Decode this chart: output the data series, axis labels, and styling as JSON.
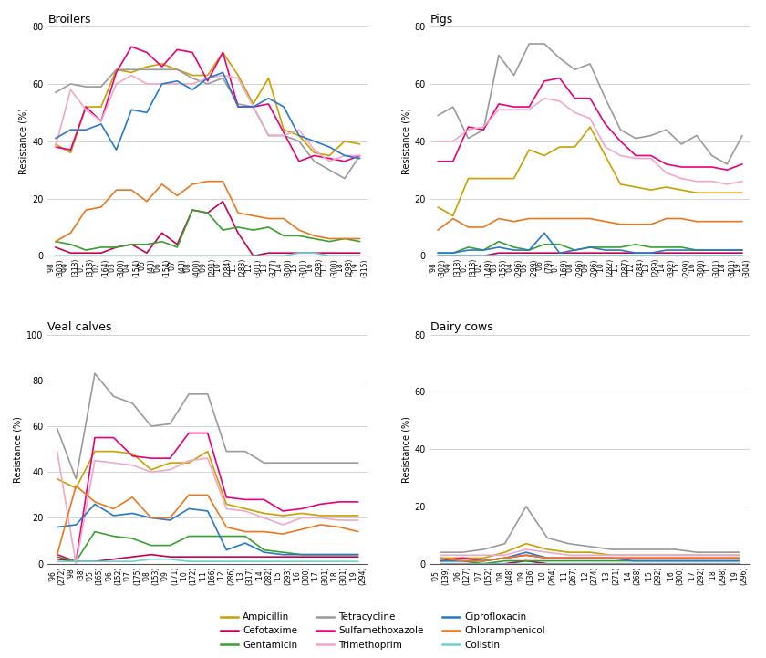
{
  "broilers": {
    "title": "Broilers",
    "years": [
      "'98\n(303)",
      "'99\n(318)",
      "'01\n(318)",
      "'02\n(164)",
      "'03\n(300)",
      "'04\n(154)",
      "'05\n(43)",
      "'06\n(154)",
      "'07\n(43)",
      "'08\n(400)",
      "'09\n(291)",
      "'10\n(284)",
      "'11\n(283)",
      "'12\n(301)",
      "'13\n(377)",
      "'14\n(300)",
      "'15\n(301)",
      "'16\n(298)",
      "'17\n(300)",
      "'18\n(298)",
      "'19\n(315)"
    ],
    "ylim": [
      0,
      80
    ],
    "yticks": [
      0,
      20,
      40,
      60,
      80
    ],
    "Ampicillin": [
      39,
      36,
      52,
      52,
      65,
      64,
      66,
      67,
      65,
      63,
      63,
      71,
      63,
      53,
      62,
      44,
      42,
      36,
      35,
      40,
      39
    ],
    "Tetracycline": [
      57,
      60,
      59,
      59,
      65,
      65,
      65,
      65,
      65,
      62,
      60,
      62,
      53,
      52,
      42,
      42,
      40,
      33,
      30,
      27,
      35
    ],
    "Cefotaxime": [
      3,
      1,
      1,
      1,
      3,
      4,
      1,
      8,
      4,
      16,
      15,
      19,
      8,
      0,
      1,
      1,
      1,
      1,
      1,
      1,
      1
    ],
    "Sulfamethoxazole": [
      38,
      37,
      52,
      47,
      64,
      73,
      71,
      66,
      72,
      71,
      61,
      71,
      52,
      52,
      53,
      43,
      33,
      35,
      34,
      33,
      35
    ],
    "Gentamicin": [
      5,
      4,
      2,
      3,
      3,
      4,
      4,
      5,
      3,
      16,
      15,
      9,
      10,
      9,
      10,
      7,
      7,
      6,
      5,
      6,
      5
    ],
    "Trimethoprim": [
      38,
      58,
      51,
      47,
      60,
      63,
      60,
      60,
      60,
      60,
      62,
      63,
      62,
      52,
      42,
      42,
      44,
      37,
      33,
      35,
      35
    ],
    "Ciprofloxacin": [
      41,
      44,
      44,
      46,
      37,
      51,
      50,
      60,
      61,
      58,
      62,
      64,
      52,
      52,
      55,
      52,
      42,
      40,
      38,
      35,
      34
    ],
    "Chloramphenicol": [
      5,
      8,
      16,
      17,
      23,
      23,
      19,
      25,
      21,
      25,
      26,
      26,
      15,
      14,
      13,
      13,
      9,
      7,
      6,
      6,
      6
    ],
    "Colistin": [
      0,
      0,
      0,
      0,
      0,
      0,
      0,
      0,
      0,
      0,
      0,
      0,
      0,
      0,
      0,
      0,
      1,
      1,
      0,
      0,
      0
    ]
  },
  "pigs": {
    "title": "Pigs",
    "years": [
      "'98\n(302)",
      "'99\n(318)",
      "'01\n(318)",
      "'02\n(149)",
      "'03\n(155)",
      "'04\n(296)",
      "'05\n(299)",
      "'06\n(79)",
      "'07\n(169)",
      "'08\n(296)",
      "'09\n(296)",
      "'10\n(282)",
      "'11\n(287)",
      "'12\n(284)",
      "'13\n(289)",
      "'14\n(392)",
      "'15\n(299)",
      "'16\n(300)",
      "'17\n(301)",
      "'18\n(301)",
      "'19\n(304)"
    ],
    "ylim": [
      0,
      80
    ],
    "yticks": [
      0,
      20,
      40,
      60,
      80
    ],
    "Ampicillin": [
      17,
      14,
      27,
      27,
      27,
      27,
      37,
      35,
      38,
      38,
      45,
      35,
      25,
      24,
      23,
      24,
      23,
      22,
      22,
      22,
      22
    ],
    "Tetracycline": [
      49,
      52,
      41,
      44,
      70,
      63,
      74,
      74,
      69,
      65,
      67,
      55,
      44,
      41,
      42,
      44,
      39,
      42,
      35,
      32,
      42
    ],
    "Cefotaxime": [
      0,
      0,
      0,
      0,
      1,
      1,
      1,
      1,
      1,
      1,
      1,
      1,
      1,
      1,
      1,
      1,
      1,
      1,
      1,
      1,
      1
    ],
    "Sulfamethoxazole": [
      33,
      33,
      45,
      44,
      53,
      52,
      52,
      61,
      62,
      55,
      55,
      46,
      40,
      35,
      35,
      32,
      31,
      31,
      31,
      30,
      32
    ],
    "Gentamicin": [
      1,
      1,
      3,
      2,
      5,
      3,
      2,
      4,
      4,
      2,
      3,
      3,
      3,
      4,
      3,
      3,
      3,
      2,
      2,
      2,
      2
    ],
    "Trimethoprim": [
      40,
      40,
      44,
      45,
      51,
      51,
      51,
      55,
      54,
      50,
      48,
      38,
      35,
      34,
      34,
      29,
      27,
      26,
      26,
      25,
      26
    ],
    "Ciprofloxacin": [
      1,
      1,
      2,
      2,
      3,
      2,
      2,
      8,
      1,
      2,
      3,
      2,
      2,
      1,
      1,
      2,
      2,
      2,
      2,
      2,
      2
    ],
    "Chloramphenicol": [
      9,
      13,
      10,
      10,
      13,
      12,
      13,
      13,
      13,
      13,
      13,
      12,
      11,
      11,
      11,
      13,
      13,
      12,
      12,
      12,
      12
    ],
    "Colistin": [
      0,
      0,
      0,
      0,
      0,
      0,
      0,
      0,
      0,
      0,
      0,
      0,
      0,
      0,
      0,
      0,
      0,
      0,
      0,
      0,
      0
    ]
  },
  "veal": {
    "title": "Veal calves",
    "years": [
      "'96\n(272)",
      "'98\n(38)",
      "'05\n(165)",
      "'06\n(152)",
      "'07\n(175)",
      "'08\n(153)",
      "'09\n(171)",
      "'10\n(172)",
      "'11\n(166)",
      "'12\n(286)",
      "'13\n(317)",
      "'14\n(282)",
      "'15\n(293)",
      "'16\n(300)",
      "'17\n(301)",
      "'18\n(301)",
      "'19\n(294)"
    ],
    "ylim": [
      0,
      100
    ],
    "yticks": [
      0,
      20,
      40,
      60,
      80,
      100
    ],
    "Ampicillin": [
      37,
      33,
      49,
      49,
      48,
      41,
      44,
      44,
      49,
      26,
      24,
      22,
      21,
      22,
      21,
      21,
      21
    ],
    "Tetracycline": [
      59,
      37,
      83,
      73,
      70,
      60,
      61,
      74,
      74,
      49,
      49,
      44,
      44,
      44,
      44,
      44,
      44
    ],
    "Cefotaxime": [
      2,
      1,
      1,
      2,
      3,
      4,
      3,
      3,
      3,
      3,
      3,
      3,
      3,
      3,
      3,
      3,
      3
    ],
    "Sulfamethoxazole": [
      4,
      1,
      55,
      55,
      47,
      46,
      46,
      57,
      57,
      29,
      28,
      28,
      23,
      24,
      26,
      27,
      27
    ],
    "Gentamicin": [
      3,
      1,
      14,
      12,
      11,
      8,
      8,
      12,
      12,
      12,
      12,
      6,
      5,
      4,
      4,
      4,
      4
    ],
    "Trimethoprim": [
      49,
      0,
      45,
      44,
      43,
      40,
      41,
      45,
      46,
      24,
      23,
      20,
      17,
      20,
      20,
      19,
      19
    ],
    "Ciprofloxacin": [
      16,
      17,
      26,
      21,
      22,
      20,
      19,
      24,
      23,
      6,
      9,
      5,
      4,
      4,
      4,
      4,
      4
    ],
    "Chloramphenicol": [
      4,
      34,
      27,
      24,
      29,
      20,
      20,
      30,
      30,
      16,
      14,
      14,
      13,
      15,
      17,
      16,
      14
    ],
    "Colistin": [
      1,
      1,
      1,
      1,
      1,
      2,
      2,
      1,
      1,
      1,
      1,
      1,
      1,
      1,
      1,
      1,
      1
    ]
  },
  "dairy": {
    "title": "Dairy cows",
    "years": [
      "'05\n(139)",
      "'06\n(127)",
      "'07\n(152)",
      "'08\n(148)",
      "'09\n(136)",
      "'10\n(264)",
      "'11\n(267)",
      "'12\n(274)",
      "'13\n(271)",
      "'14\n(268)",
      "'15\n(292)",
      "'16\n(300)",
      "'17\n(292)",
      "'18\n(298)",
      "'19\n(296)"
    ],
    "ylim": [
      0,
      80
    ],
    "yticks": [
      0,
      20,
      40,
      60,
      80
    ],
    "Ampicillin": [
      2,
      2,
      2,
      4,
      7,
      5,
      4,
      4,
      3,
      3,
      3,
      3,
      3,
      3,
      3
    ],
    "Tetracycline": [
      4,
      4,
      5,
      7,
      20,
      9,
      7,
      6,
      5,
      5,
      5,
      5,
      4,
      4,
      4
    ],
    "Cefotaxime": [
      0,
      0,
      0,
      0,
      1,
      0,
      0,
      0,
      0,
      0,
      0,
      0,
      0,
      0,
      0
    ],
    "Sulfamethoxazole": [
      1,
      2,
      1,
      2,
      3,
      2,
      2,
      2,
      2,
      2,
      2,
      2,
      2,
      2,
      2
    ],
    "Gentamicin": [
      1,
      1,
      0,
      1,
      1,
      1,
      1,
      1,
      1,
      1,
      1,
      1,
      1,
      1,
      1
    ],
    "Trimethoprim": [
      3,
      3,
      3,
      3,
      5,
      4,
      3,
      3,
      3,
      3,
      3,
      3,
      3,
      3,
      3
    ],
    "Ciprofloxacin": [
      1,
      1,
      1,
      2,
      4,
      2,
      2,
      2,
      2,
      1,
      1,
      1,
      1,
      1,
      1
    ],
    "Chloramphenicol": [
      2,
      1,
      1,
      2,
      3,
      2,
      2,
      2,
      2,
      2,
      2,
      2,
      2,
      2,
      2
    ],
    "Colistin": [
      0,
      0,
      0,
      0,
      0,
      0,
      0,
      0,
      0,
      0,
      0,
      0,
      0,
      0,
      0
    ]
  },
  "colors": {
    "Ampicillin": "#c8a000",
    "Tetracycline": "#9a9a9a",
    "Cefotaxime": "#c80050",
    "Sulfamethoxazole": "#e8007a",
    "Gentamicin": "#38a030",
    "Trimethoprim": "#f0a8c8",
    "Ciprofloxacin": "#2878c8",
    "Chloramphenicol": "#e87820",
    "Colistin": "#70d0d0"
  },
  "antibiotic_keys": [
    "Ampicillin",
    "Tetracycline",
    "Cefotaxime",
    "Sulfamethoxazole",
    "Gentamicin",
    "Trimethoprim",
    "Ciprofloxacin",
    "Chloramphenicol",
    "Colistin"
  ],
  "legend_order": [
    "Ampicillin",
    "Cefotaxime",
    "Gentamicin",
    "Tetracycline",
    "Sulfamethoxazole",
    "Trimethoprim",
    "Ciprofloxacin",
    "Chloramphenicol",
    "Colistin"
  ]
}
